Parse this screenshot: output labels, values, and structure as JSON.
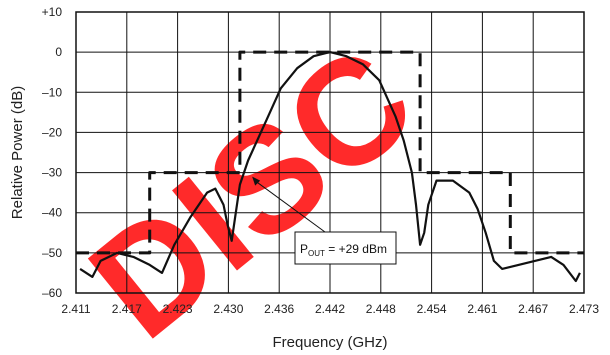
{
  "chart_data": {
    "type": "line",
    "title": "",
    "xlabel": "Frequency (GHz)",
    "ylabel": "Relative Power (dB)",
    "xlim": [
      2.411,
      2.473
    ],
    "ylim": [
      -60,
      10
    ],
    "grid": true,
    "x_ticks": [
      "2.411",
      "2.417",
      "2.423",
      "2.430",
      "2.436",
      "2.442",
      "2.448",
      "2.454",
      "2.461",
      "2.467",
      "2.473"
    ],
    "y_ticks": [
      {
        "value": 10,
        "label": "+10"
      },
      {
        "value": 0,
        "label": "0"
      },
      {
        "value": -10,
        "label": "–10"
      },
      {
        "value": -20,
        "label": "–20"
      },
      {
        "value": -30,
        "label": "–30"
      },
      {
        "value": -40,
        "label": "–40"
      },
      {
        "value": -50,
        "label": "–50"
      },
      {
        "value": -60,
        "label": "–60"
      }
    ],
    "series": [
      {
        "style": "dashed",
        "x": [
          2.411,
          2.42,
          2.42,
          2.431,
          2.431,
          2.453,
          2.453,
          2.464,
          2.464,
          2.473
        ],
        "y": [
          -50,
          -50,
          -30,
          -30,
          0,
          0,
          -30,
          -30,
          -50,
          -50
        ]
      },
      {
        "style": "solid",
        "x": [
          2.4115,
          2.413,
          2.414,
          2.416,
          2.418,
          2.42,
          2.4215,
          2.423,
          2.425,
          2.427,
          2.428,
          2.429,
          2.4295,
          2.43,
          2.431,
          2.432,
          2.434,
          2.436,
          2.438,
          2.44,
          2.442,
          2.444,
          2.446,
          2.448,
          2.45,
          2.451,
          2.452,
          2.4525,
          2.453,
          2.4535,
          2.454,
          2.455,
          2.457,
          2.459,
          2.46,
          2.461,
          2.462,
          2.463,
          2.465,
          2.467,
          2.469,
          2.4705,
          2.472,
          2.4725
        ],
        "y": [
          -54,
          -56,
          -52,
          -50,
          -51,
          -53,
          -55,
          -48,
          -41,
          -35,
          -34,
          -38,
          -43,
          -47,
          -33,
          -27,
          -18,
          -9,
          -4,
          -1,
          0,
          -1,
          -3,
          -7,
          -16,
          -22,
          -30,
          -38,
          -48,
          -45,
          -38,
          -32,
          -32,
          -35,
          -39,
          -45,
          -52,
          -54,
          -53,
          -52,
          -51,
          -53,
          -57,
          -55
        ]
      }
    ],
    "annotation": {
      "text_main": "P",
      "text_sub": "OUT",
      "text_rest": " = +29 dBm",
      "point": {
        "x": 2.4325,
        "y": -31
      }
    },
    "watermark": "DISC"
  }
}
